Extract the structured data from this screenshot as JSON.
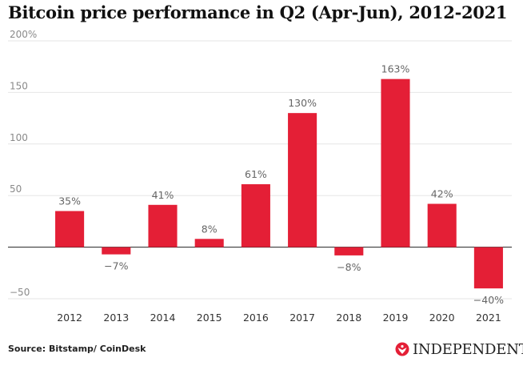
{
  "title": "Bitcoin price performance in Q2 (Apr-Jun), 2012-2021",
  "source": "Source: Bitstamp/ CoinDesk",
  "brand": {
    "name": "INDEPENDENT",
    "accent": "#e41f36"
  },
  "chart_data": {
    "type": "bar",
    "title": "Bitcoin price performance in Q2 (Apr-Jun), 2012-2021",
    "xlabel": "",
    "ylabel": "",
    "categories": [
      "2012",
      "2013",
      "2014",
      "2015",
      "2016",
      "2017",
      "2018",
      "2019",
      "2020",
      "2021"
    ],
    "values": [
      35,
      -7,
      41,
      8,
      61,
      130,
      -8,
      163,
      42,
      -40
    ],
    "data_labels": [
      "35%",
      "−7%",
      "41%",
      "8%",
      "61%",
      "130%",
      "−8%",
      "163%",
      "42%",
      "−40%"
    ],
    "yticks": [
      -50,
      0,
      50,
      100,
      150,
      200
    ],
    "ytick_labels": [
      "−50",
      "",
      "50",
      "100",
      "150",
      "200%"
    ],
    "ylim": [
      -50,
      200
    ],
    "grid": true,
    "bar_color": "#e41f36",
    "gridline_color": "#e6e6e6"
  }
}
